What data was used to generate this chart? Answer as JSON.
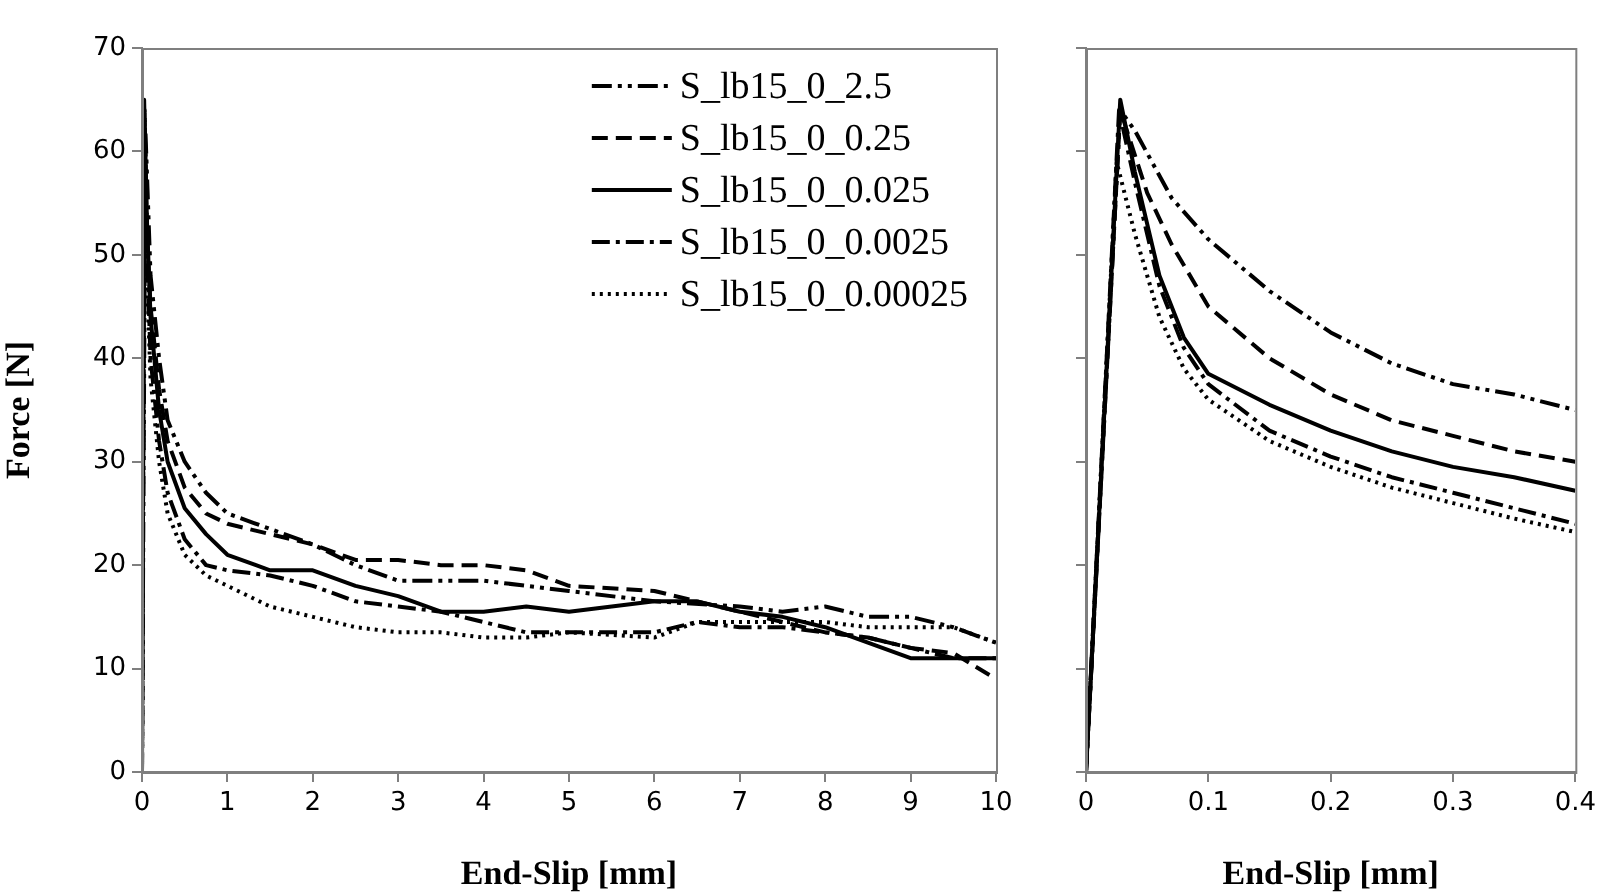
{
  "chart_data": [
    {
      "type": "line",
      "xlabel": "End-Slip [mm]",
      "ylabel": "Force [N]",
      "xlim": [
        0,
        10
      ],
      "xticks": [
        0,
        1,
        2,
        3,
        4,
        5,
        6,
        7,
        8,
        9,
        10
      ],
      "ylim": [
        0,
        70
      ],
      "yticks": [
        0,
        10,
        20,
        30,
        40,
        50,
        60,
        70
      ],
      "grid": false,
      "legend": "top right",
      "marker": "none",
      "series": [
        {
          "name": "S_lb15_0_2.5",
          "color": "#000000",
          "line_style": "dashdotdot",
          "x": [
            0,
            0.04,
            0.1,
            0.2,
            0.3,
            0.5,
            0.75,
            1,
            1.5,
            2,
            2.5,
            3,
            3.5,
            4,
            4.5,
            5,
            6,
            7,
            7.5,
            8,
            8.5,
            9,
            9.5,
            10
          ],
          "values": [
            0,
            62,
            48,
            40,
            34,
            30,
            27,
            25,
            23.5,
            22,
            20,
            18.5,
            18.5,
            18.5,
            18,
            17.5,
            16.5,
            16,
            15.5,
            16,
            15,
            15,
            14,
            12.5
          ]
        },
        {
          "name": "S_lb15_0_0.25",
          "color": "#000000",
          "line_style": "dashed",
          "x": [
            0,
            0.03,
            0.06,
            0.1,
            0.2,
            0.3,
            0.5,
            0.75,
            1,
            1.5,
            2,
            2.5,
            3,
            3.5,
            4,
            4.5,
            5,
            6,
            6.5,
            7,
            7.5,
            8,
            8.5,
            9,
            9.5,
            10
          ],
          "values": [
            0,
            63,
            52,
            45,
            37,
            32,
            27.5,
            25,
            24,
            23,
            22,
            20.5,
            20.5,
            20,
            20,
            19.5,
            18,
            17.5,
            16.5,
            15.5,
            14.5,
            13.5,
            13,
            12,
            11.5,
            9
          ]
        },
        {
          "name": "S_lb15_0_0.025",
          "color": "#000000",
          "line_style": "solid",
          "x": [
            0,
            0.025,
            0.05,
            0.1,
            0.2,
            0.3,
            0.5,
            0.75,
            1,
            1.5,
            2,
            2.5,
            3,
            3.5,
            4,
            4.5,
            5,
            6,
            6.5,
            7,
            7.5,
            8,
            8.5,
            9,
            9.5,
            10
          ],
          "values": [
            0,
            65,
            55,
            44,
            35,
            30,
            25.5,
            23,
            21,
            19.5,
            19.5,
            18,
            17,
            15.5,
            15.5,
            16,
            15.5,
            16.5,
            16.5,
            15.5,
            15,
            14,
            12.5,
            11,
            11,
            11
          ]
        },
        {
          "name": "S_lb15_0_0.0025",
          "color": "#000000",
          "line_style": "dashdot",
          "x": [
            0,
            0.03,
            0.06,
            0.1,
            0.2,
            0.3,
            0.5,
            0.75,
            1,
            1.5,
            2,
            2.5,
            3,
            3.5,
            4,
            4.5,
            5,
            6,
            6.5,
            7,
            7.5,
            8,
            8.5,
            9,
            9.5,
            10
          ],
          "values": [
            0,
            64,
            50,
            40,
            32,
            27,
            22.5,
            20,
            19.5,
            19,
            18,
            16.5,
            16,
            15.5,
            14.5,
            13.5,
            13.5,
            13.5,
            14.5,
            14,
            14,
            13.5,
            13,
            12,
            11,
            11
          ]
        },
        {
          "name": "S_lb15_0_0.00025",
          "color": "#000000",
          "line_style": "dotted",
          "x": [
            0,
            0.025,
            0.05,
            0.1,
            0.2,
            0.3,
            0.5,
            0.75,
            1,
            1.5,
            2,
            2.5,
            3,
            3.5,
            4,
            4.5,
            5,
            6,
            6.5,
            7,
            7.5,
            8,
            8.5,
            9,
            9.5,
            10
          ],
          "values": [
            0,
            59,
            50,
            38,
            30,
            25,
            21,
            19,
            18,
            16,
            15,
            14,
            13.5,
            13.5,
            13,
            13,
            13.5,
            13,
            14.5,
            14.5,
            14.5,
            14.5,
            14,
            14,
            14,
            12.5
          ]
        }
      ]
    },
    {
      "type": "line",
      "xlabel": "End-Slip [mm]",
      "xlim": [
        0,
        0.4
      ],
      "xticks": [
        0,
        0.1,
        0.2,
        0.3,
        0.4
      ],
      "ylim": [
        0,
        70
      ],
      "yticks": [
        0,
        10,
        20,
        30,
        40,
        50,
        60,
        70
      ],
      "tick_labels": "x",
      "grid": false,
      "legend": false,
      "marker": "none",
      "series": [
        {
          "color": "#000000",
          "line_style": "dashdotdot",
          "x": [
            0,
            0.028,
            0.04,
            0.07,
            0.1,
            0.15,
            0.2,
            0.25,
            0.3,
            0.35,
            0.4
          ],
          "values": [
            0,
            64,
            62,
            55.5,
            51.5,
            46.5,
            42.5,
            39.5,
            37.5,
            36.5,
            35
          ]
        },
        {
          "color": "#000000",
          "line_style": "dashed",
          "x": [
            0,
            0.028,
            0.05,
            0.07,
            0.1,
            0.15,
            0.2,
            0.25,
            0.3,
            0.35,
            0.4
          ],
          "values": [
            0,
            64,
            56,
            51,
            45,
            40,
            36.5,
            34,
            32.5,
            31,
            30
          ]
        },
        {
          "color": "#000000",
          "line_style": "solid",
          "x": [
            0,
            0.028,
            0.04,
            0.06,
            0.08,
            0.1,
            0.15,
            0.2,
            0.25,
            0.3,
            0.35,
            0.4
          ],
          "values": [
            0,
            65,
            58,
            48,
            42,
            38.5,
            35.5,
            33,
            31,
            29.5,
            28.5,
            27.2
          ]
        },
        {
          "color": "#000000",
          "line_style": "dashdot",
          "x": [
            0,
            0.027,
            0.04,
            0.06,
            0.08,
            0.1,
            0.15,
            0.2,
            0.25,
            0.3,
            0.35,
            0.4
          ],
          "values": [
            0,
            64,
            57,
            47,
            41,
            37.5,
            33,
            30.5,
            28.5,
            27,
            25.5,
            24
          ]
        },
        {
          "color": "#000000",
          "line_style": "dotted",
          "x": [
            0,
            0.025,
            0.04,
            0.06,
            0.08,
            0.1,
            0.15,
            0.2,
            0.25,
            0.3,
            0.35,
            0.4
          ],
          "values": [
            0,
            59,
            52,
            44,
            39,
            36,
            32,
            29.5,
            27.5,
            26,
            24.5,
            23.2
          ]
        }
      ]
    }
  ]
}
